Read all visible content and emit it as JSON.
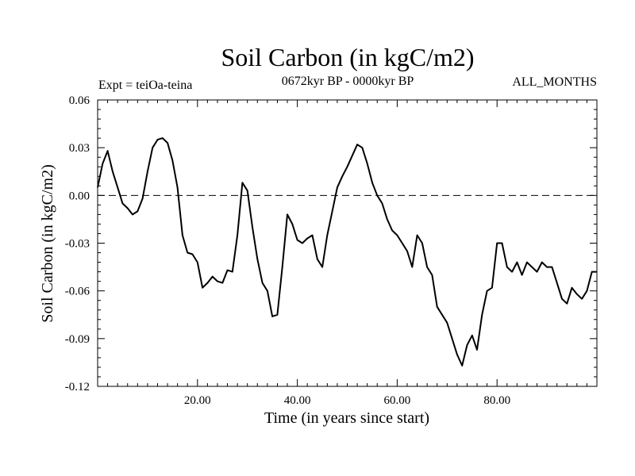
{
  "chart_data": {
    "type": "line",
    "title": "Soil Carbon (in kgC/m2)",
    "subtitle": "0672kyr BP - 0000kyr BP",
    "left_note": "Expt = teiOa-teina",
    "right_note": "ALL_MONTHS",
    "xlabel": "Time (in years since start)",
    "ylabel": "Soil Carbon (in kgC/m2)",
    "xlim": [
      0,
      100
    ],
    "ylim": [
      -0.12,
      0.06
    ],
    "x_ticks": [
      20,
      40,
      60,
      80
    ],
    "x_tick_labels": [
      "20.00",
      "40.00",
      "60.00",
      "80.00"
    ],
    "y_ticks": [
      0.06,
      0.03,
      0.0,
      -0.03,
      -0.06,
      -0.09,
      -0.12
    ],
    "y_tick_labels": [
      "0.06",
      "0.03",
      "0.00",
      "-0.03",
      "-0.06",
      "-0.09",
      "-0.12"
    ],
    "reference_line": 0.0,
    "grid": false,
    "series": [
      {
        "name": "Soil Carbon",
        "x": [
          0,
          1,
          2,
          3,
          4,
          5,
          6,
          7,
          8,
          9,
          10,
          11,
          12,
          13,
          14,
          15,
          16,
          17,
          18,
          19,
          20,
          21,
          22,
          23,
          24,
          25,
          26,
          27,
          28,
          29,
          30,
          31,
          32,
          33,
          34,
          35,
          36,
          37,
          38,
          39,
          40,
          41,
          42,
          43,
          44,
          45,
          46,
          47,
          48,
          49,
          50,
          51,
          52,
          53,
          54,
          55,
          56,
          57,
          58,
          59,
          60,
          61,
          62,
          63,
          64,
          65,
          66,
          67,
          68,
          69,
          70,
          71,
          72,
          73,
          74,
          75,
          76,
          77,
          78,
          79,
          80,
          81,
          82,
          83,
          84,
          85,
          86,
          87,
          88,
          89,
          90,
          91,
          92,
          93,
          94,
          95,
          96,
          97,
          98,
          99,
          100
        ],
        "values": [
          0.005,
          0.02,
          0.028,
          0.015,
          0.005,
          -0.005,
          -0.008,
          -0.012,
          -0.01,
          -0.002,
          0.015,
          0.03,
          0.035,
          0.036,
          0.033,
          0.022,
          0.005,
          -0.025,
          -0.036,
          -0.037,
          -0.042,
          -0.058,
          -0.055,
          -0.051,
          -0.054,
          -0.055,
          -0.047,
          -0.048,
          -0.025,
          0.008,
          0.003,
          -0.02,
          -0.04,
          -0.055,
          -0.06,
          -0.076,
          -0.075,
          -0.045,
          -0.012,
          -0.018,
          -0.028,
          -0.03,
          -0.027,
          -0.025,
          -0.04,
          -0.045,
          -0.025,
          -0.01,
          0.005,
          0.012,
          0.018,
          0.025,
          0.032,
          0.03,
          0.02,
          0.008,
          0.0,
          -0.005,
          -0.015,
          -0.022,
          -0.025,
          -0.03,
          -0.035,
          -0.045,
          -0.025,
          -0.03,
          -0.045,
          -0.05,
          -0.07,
          -0.075,
          -0.08,
          -0.09,
          -0.1,
          -0.107,
          -0.094,
          -0.088,
          -0.097,
          -0.075,
          -0.06,
          -0.058,
          -0.03,
          -0.03,
          -0.045,
          -0.048,
          -0.042,
          -0.05,
          -0.042,
          -0.045,
          -0.048,
          -0.042,
          -0.045,
          -0.045,
          -0.055,
          -0.065,
          -0.068,
          -0.058,
          -0.062,
          -0.065,
          -0.06,
          -0.048,
          -0.048
        ]
      }
    ]
  }
}
